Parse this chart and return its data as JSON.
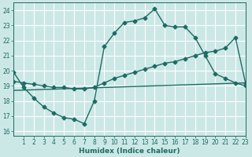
{
  "background_color": "#cce8e6",
  "grid_color": "#ffffff",
  "line_color": "#1e6b63",
  "xlabel": "Humidex (Indice chaleur)",
  "xlim": [
    0,
    23
  ],
  "ylim": [
    15.7,
    24.5
  ],
  "xticks": [
    1,
    2,
    3,
    4,
    5,
    6,
    7,
    8,
    9,
    10,
    11,
    12,
    13,
    14,
    15,
    16,
    17,
    18,
    19,
    20,
    21,
    22,
    23
  ],
  "yticks": [
    16,
    17,
    18,
    19,
    20,
    21,
    22,
    23,
    24
  ],
  "curve1_x": [
    0,
    1,
    2,
    3,
    4,
    5,
    6,
    7,
    8,
    9,
    10,
    11,
    12,
    13,
    14,
    15,
    16,
    17,
    18,
    19,
    20,
    21,
    22,
    23
  ],
  "curve1_y": [
    19.9,
    18.9,
    18.2,
    17.6,
    17.2,
    16.9,
    16.8,
    16.5,
    18.0,
    21.6,
    22.5,
    23.2,
    23.3,
    23.5,
    24.1,
    23.0,
    22.9,
    22.9,
    22.2,
    21.0,
    19.8,
    19.5,
    19.2,
    19.0
  ],
  "curve2_x": [
    0,
    1,
    2,
    3,
    4,
    5,
    6,
    7,
    8,
    9,
    10,
    11,
    12,
    13,
    14,
    15,
    16,
    17,
    18,
    19,
    20,
    21,
    22,
    23
  ],
  "curve2_y": [
    19.3,
    19.2,
    19.1,
    19.0,
    18.9,
    18.9,
    18.8,
    18.8,
    18.9,
    19.2,
    19.5,
    19.7,
    19.9,
    20.1,
    20.3,
    20.5,
    20.6,
    20.8,
    21.0,
    21.2,
    21.3,
    21.5,
    22.2,
    19.2
  ],
  "curve3_x": [
    0,
    23
  ],
  "curve3_y": [
    18.7,
    19.2
  ],
  "marker": "D",
  "marker_size": 2.5,
  "linewidth": 1.0
}
